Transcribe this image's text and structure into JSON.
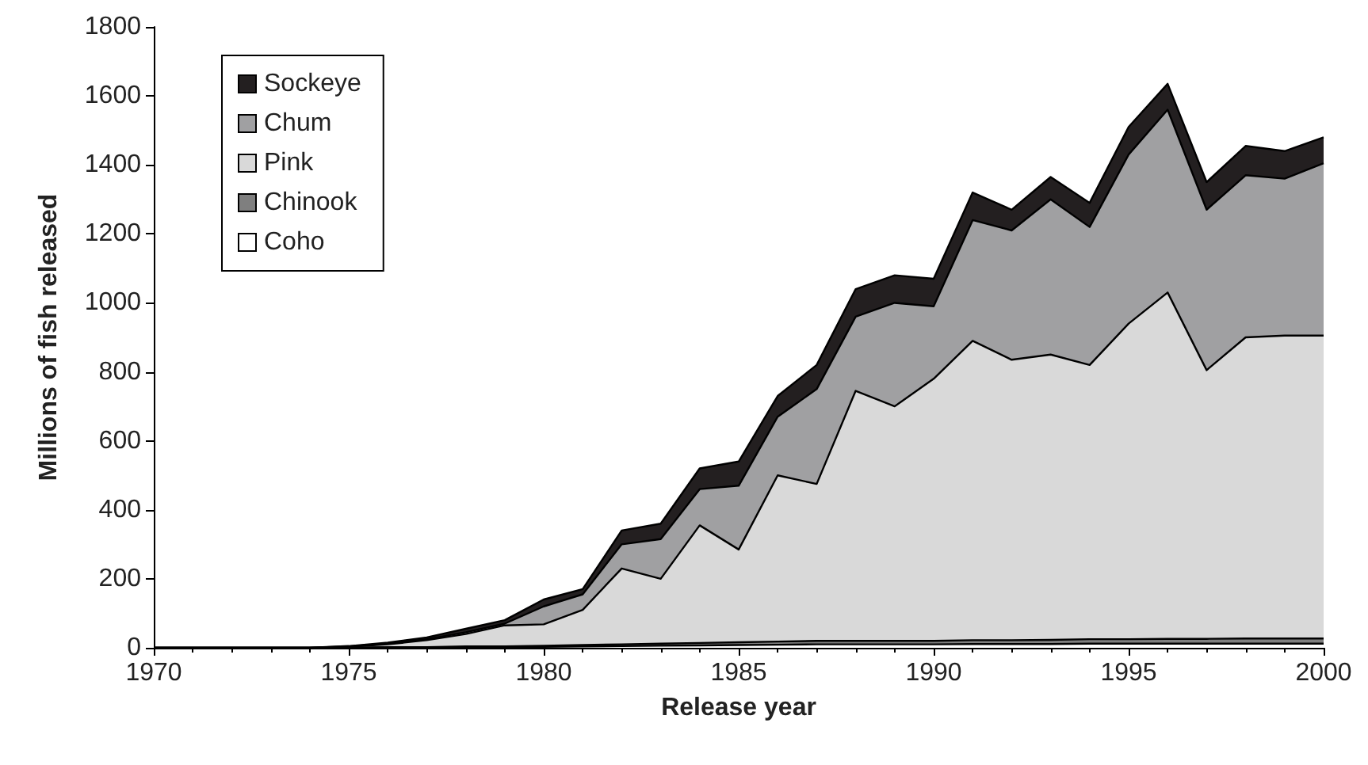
{
  "chart_data": {
    "type": "area",
    "stacked": true,
    "xlabel": "Release year",
    "ylabel": "Millions of fish released",
    "x": [
      1970,
      1971,
      1972,
      1973,
      1974,
      1975,
      1976,
      1977,
      1978,
      1979,
      1980,
      1981,
      1982,
      1983,
      1984,
      1985,
      1986,
      1987,
      1988,
      1989,
      1990,
      1991,
      1992,
      1993,
      1994,
      1995,
      1996,
      1997,
      1998,
      1999,
      2000
    ],
    "series": [
      {
        "name": "Coho",
        "color": "#ffffff",
        "values": [
          0,
          0,
          0,
          0,
          0,
          0,
          1,
          1,
          2,
          2,
          3,
          4,
          5,
          6,
          7,
          8,
          9,
          10,
          10,
          10,
          10,
          11,
          11,
          11,
          12,
          12,
          12,
          12,
          12,
          12,
          12
        ]
      },
      {
        "name": "Chinook",
        "color": "#7f7f7f",
        "values": [
          0,
          0,
          0,
          0,
          0,
          0,
          1,
          1,
          2,
          2,
          3,
          4,
          5,
          6,
          7,
          8,
          9,
          10,
          10,
          10,
          10,
          11,
          11,
          12,
          13,
          13,
          14,
          14,
          15,
          15,
          15
        ]
      },
      {
        "name": "Pink",
        "color": "#d9d9d9",
        "values": [
          0,
          0,
          0,
          0,
          0,
          3,
          8,
          20,
          36,
          61,
          62,
          102,
          220,
          188,
          341,
          269,
          482,
          455,
          725,
          680,
          760,
          868,
          813,
          827,
          795,
          915,
          1004,
          779,
          873,
          878,
          878
        ]
      },
      {
        "name": "Chum",
        "color": "#a0a0a2",
        "values": [
          0,
          0,
          0,
          0,
          0,
          1,
          2,
          3,
          5,
          5,
          52,
          45,
          70,
          115,
          105,
          185,
          170,
          275,
          215,
          300,
          210,
          350,
          375,
          450,
          400,
          490,
          530,
          465,
          470,
          455,
          500
        ]
      },
      {
        "name": "Sockeye",
        "color": "#231f20",
        "values": [
          0,
          0,
          0,
          0,
          0,
          1,
          3,
          5,
          10,
          10,
          20,
          15,
          40,
          45,
          60,
          70,
          60,
          70,
          80,
          80,
          80,
          80,
          60,
          65,
          70,
          80,
          75,
          80,
          85,
          80,
          75
        ]
      }
    ],
    "xlim": [
      1970,
      2000
    ],
    "xticks": [
      1970,
      1975,
      1980,
      1985,
      1990,
      1995,
      2000
    ],
    "ylim": [
      0,
      1800
    ],
    "yticks": [
      0,
      200,
      400,
      600,
      800,
      1000,
      1200,
      1400,
      1600,
      1800
    ],
    "grid": false,
    "legend": "top left"
  }
}
